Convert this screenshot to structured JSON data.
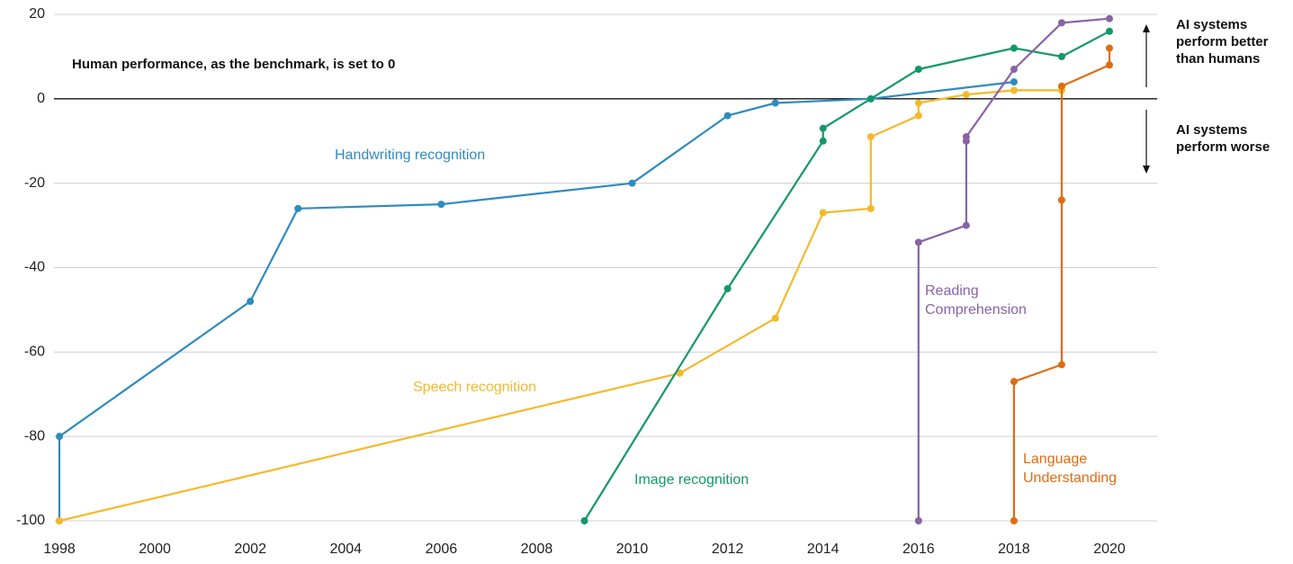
{
  "chart_data": {
    "type": "line",
    "annotations": [
      "Human performance, as the benchmark, is set to 0",
      "AI systems perform better than humans",
      "AI systems perform worse"
    ],
    "xlim": [
      1998,
      2020
    ],
    "xticks": [
      1998,
      2000,
      2002,
      2004,
      2006,
      2008,
      2010,
      2012,
      2014,
      2016,
      2018,
      2020
    ],
    "ylim": [
      -100,
      20
    ],
    "yticks": [
      -100,
      -80,
      -60,
      -40,
      -20,
      0,
      20
    ],
    "grid": true,
    "series": [
      {
        "name": "Handwriting recognition",
        "color": "#2e8bc0",
        "x": [
          1998,
          1998,
          2002,
          2003,
          2006,
          2010,
          2012,
          2013,
          2015,
          2018
        ],
        "values": [
          -100,
          -80,
          -48,
          -26,
          -25,
          -20,
          -4,
          -1,
          0,
          4
        ]
      },
      {
        "name": "Speech recognition",
        "color": "#f5b92a",
        "x": [
          1998,
          2011,
          2013,
          2014,
          2015,
          2015,
          2016,
          2016,
          2017,
          2018,
          2019
        ],
        "values": [
          -100,
          -65,
          -52,
          -27,
          -26,
          -9,
          -4,
          -1,
          1,
          2,
          2
        ]
      },
      {
        "name": "Image recognition",
        "color": "#12986a",
        "x": [
          2009,
          2012,
          2014,
          2014,
          2015,
          2016,
          2018,
          2019,
          2020
        ],
        "values": [
          -100,
          -45,
          -10,
          -7,
          0,
          7,
          12,
          10,
          16
        ]
      },
      {
        "name": "Reading Comprehension",
        "color": "#8a62a8",
        "x": [
          2016,
          2016,
          2017,
          2017,
          2017,
          2018,
          2019,
          2020
        ],
        "values": [
          -100,
          -34,
          -30,
          -10,
          -9,
          7,
          18,
          19
        ]
      },
      {
        "name": "Language Understanding",
        "color": "#e06c10",
        "x": [
          2018,
          2018,
          2019,
          2019,
          2019,
          2020,
          2020
        ],
        "values": [
          -100,
          -67,
          -63,
          -24,
          3,
          8,
          12
        ]
      }
    ]
  }
}
